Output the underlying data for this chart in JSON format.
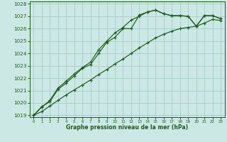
{
  "xlabel": "Graphe pression niveau de la mer (hPa)",
  "bg_color": "#cce8e4",
  "grid_color": "#a8ccc8",
  "line_color": "#1a5c1a",
  "ylim": [
    1018.85,
    1028.2
  ],
  "yticks": [
    1019,
    1020,
    1021,
    1022,
    1023,
    1024,
    1025,
    1026,
    1027,
    1028
  ],
  "series1": [
    1019.0,
    1019.7,
    1020.1,
    1021.1,
    1021.6,
    1022.2,
    1022.8,
    1023.1,
    1024.0,
    1024.9,
    1025.3,
    1026.0,
    1026.0,
    1027.1,
    1027.35,
    1027.5,
    1027.2,
    1027.05,
    1027.05,
    1027.0,
    1026.2,
    1027.05,
    1027.05,
    1026.8
  ],
  "series2": [
    1019.0,
    1019.65,
    1020.2,
    1021.2,
    1021.75,
    1022.35,
    1022.85,
    1023.3,
    1024.3,
    1025.0,
    1025.65,
    1026.1,
    1026.7,
    1027.0,
    1027.35,
    1027.5,
    1027.2,
    1027.05,
    1027.05,
    1027.0,
    1026.2,
    1027.05,
    1027.05,
    1026.8
  ],
  "series3": [
    1019.0,
    1019.3,
    1019.75,
    1020.2,
    1020.65,
    1021.05,
    1021.45,
    1021.85,
    1022.3,
    1022.7,
    1023.15,
    1023.55,
    1024.0,
    1024.45,
    1024.85,
    1025.25,
    1025.55,
    1025.8,
    1026.0,
    1026.1,
    1026.2,
    1026.45,
    1026.75,
    1026.65
  ]
}
